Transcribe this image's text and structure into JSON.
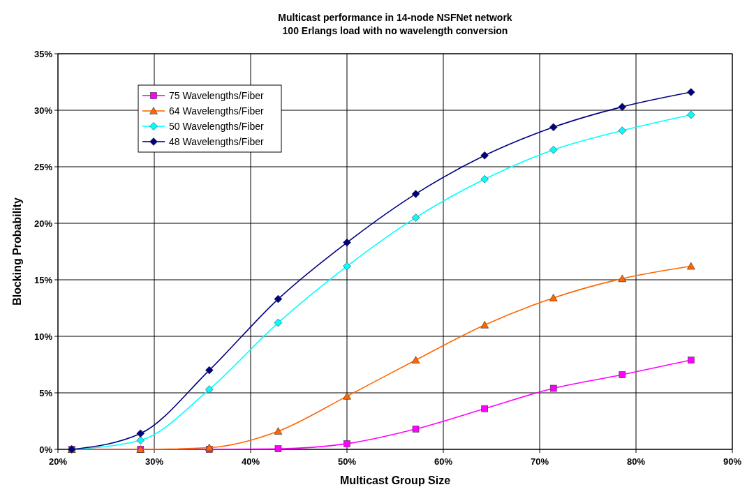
{
  "chart_data": {
    "type": "line",
    "title": "Multicast performance in 14-node NSFNet network",
    "subtitle": "100 Erlangs load with no wavelength conversion",
    "xlabel": "Multicast Group Size",
    "ylabel": "Blocking Probability",
    "x": [
      21.43,
      28.57,
      35.71,
      42.86,
      50,
      57.14,
      64.29,
      71.43,
      78.57,
      85.71
    ],
    "xlim": [
      20,
      90
    ],
    "xticks": [
      {
        "value": 20,
        "label": "20%"
      },
      {
        "value": 30,
        "label": "30%"
      },
      {
        "value": 40,
        "label": "40%"
      },
      {
        "value": 50,
        "label": "50%"
      },
      {
        "value": 60,
        "label": "60%"
      },
      {
        "value": 70,
        "label": "70%"
      },
      {
        "value": 80,
        "label": "80%"
      },
      {
        "value": 90,
        "label": "90%"
      }
    ],
    "ylim": [
      0,
      35
    ],
    "yticks": [
      {
        "value": 0,
        "label": "0%"
      },
      {
        "value": 5,
        "label": "5%"
      },
      {
        "value": 10,
        "label": "10%"
      },
      {
        "value": 15,
        "label": "15%"
      },
      {
        "value": 20,
        "label": "20%"
      },
      {
        "value": 25,
        "label": "25%"
      },
      {
        "value": 30,
        "label": "30%"
      },
      {
        "value": 35,
        "label": "35%"
      }
    ],
    "grid": true,
    "legend": "top left",
    "line_style": "solid",
    "series": [
      {
        "name": "75 Wavelengths/Fiber",
        "color": "#ff00ff",
        "marker": "square",
        "values": [
          0,
          0,
          0,
          0.05,
          0.5,
          1.8,
          3.6,
          5.4,
          6.6,
          7.9
        ]
      },
      {
        "name": "64 Wavelengths/Fiber",
        "color": "#ff6600",
        "marker": "triangle",
        "values": [
          0,
          0,
          0.15,
          1.6,
          4.7,
          7.9,
          11.0,
          13.4,
          15.1,
          16.2
        ]
      },
      {
        "name": "50 Wavelengths/Fiber",
        "color": "#00ffff",
        "marker": "diamond",
        "values": [
          0,
          0.8,
          5.3,
          11.2,
          16.2,
          20.5,
          23.9,
          26.5,
          28.2,
          29.6
        ]
      },
      {
        "name": "48 Wavelengths/Fiber",
        "color": "#000080",
        "marker": "diamond",
        "values": [
          0,
          1.4,
          7.0,
          13.3,
          18.3,
          22.6,
          26.0,
          28.5,
          30.3,
          31.6
        ]
      }
    ]
  }
}
